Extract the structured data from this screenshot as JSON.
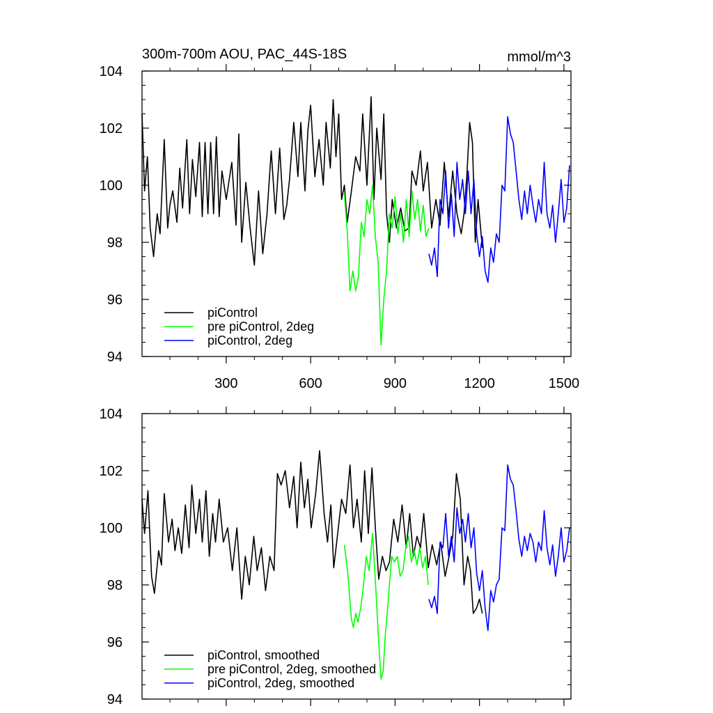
{
  "chart_data": [
    {
      "type": "line",
      "title": "300m-700m AOU, PAC_44S-18S",
      "units": "mmol/m^3",
      "xlabel": "",
      "ylabel": "",
      "xlim": [
        1,
        1525
      ],
      "ylim": [
        94,
        104
      ],
      "x_ticks": [
        300,
        600,
        900,
        1200,
        1500
      ],
      "x_tick_labels": [
        "300",
        "600",
        "900",
        "1200",
        "1500"
      ],
      "y_ticks": [
        94,
        96,
        98,
        100,
        102,
        104
      ],
      "y_tick_labels": [
        "94",
        "96",
        "98",
        "100",
        "102",
        "104"
      ],
      "legend_position": "bottom-left",
      "series": [
        {
          "name": "piControl",
          "color": "#000000",
          "x": [
            1,
            10,
            20,
            30,
            42,
            55,
            65,
            80,
            92,
            100,
            110,
            125,
            135,
            145,
            160,
            170,
            180,
            192,
            205,
            215,
            225,
            235,
            245,
            255,
            265,
            275,
            285,
            300,
            320,
            335,
            345,
            355,
            370,
            385,
            400,
            415,
            430,
            445,
            460,
            475,
            490,
            505,
            515,
            525,
            540,
            555,
            565,
            580,
            590,
            600,
            615,
            630,
            645,
            655,
            670,
            680,
            690,
            700,
            710,
            720,
            730,
            745,
            760,
            775,
            785,
            800,
            815,
            825,
            835,
            850,
            860,
            870,
            880,
            890,
            905,
            920,
            935,
            950,
            960,
            975,
            990,
            1000,
            1015,
            1030,
            1045,
            1060,
            1075,
            1090,
            1105,
            1120,
            1135,
            1145,
            1155,
            1165,
            1175,
            1185,
            1195,
            1210
          ],
          "values": [
            102.5,
            99.8,
            101.0,
            98.5,
            97.5,
            99.0,
            98.3,
            101.6,
            98.5,
            99.3,
            99.8,
            98.7,
            100.6,
            99.2,
            101.6,
            99.0,
            100.9,
            99.6,
            101.5,
            98.9,
            101.5,
            99.0,
            101.5,
            99.0,
            101.7,
            98.9,
            100.5,
            99.5,
            100.8,
            98.6,
            101.8,
            98.0,
            100.1,
            98.5,
            97.2,
            99.8,
            97.6,
            99.0,
            101.2,
            99.0,
            101.3,
            98.8,
            99.3,
            100.2,
            102.2,
            100.3,
            102.2,
            99.8,
            101.9,
            102.8,
            100.3,
            101.6,
            100.0,
            102.2,
            100.6,
            103.0,
            101.0,
            102.5,
            99.5,
            100.0,
            98.7,
            99.8,
            101.0,
            100.5,
            102.5,
            100.0,
            103.1,
            99.5,
            102.0,
            100.2,
            102.5,
            99.0,
            98.0,
            99.5,
            98.5,
            99.2,
            98.4,
            98.5,
            100.5,
            100.0,
            101.2,
            99.8,
            100.8,
            98.5,
            99.5,
            98.6,
            100.8,
            98.9,
            100.5,
            99.0,
            98.3,
            99.0,
            100.3,
            102.2,
            101.5,
            98.0,
            99.5,
            97.8
          ]
        },
        {
          "name": "pre piControl, 2deg",
          "color": "#00ff00",
          "x": [
            720,
            730,
            740,
            750,
            760,
            770,
            780,
            790,
            800,
            810,
            820,
            830,
            840,
            850,
            860,
            870,
            880,
            890,
            900,
            910,
            920,
            930,
            940,
            950,
            960,
            970,
            980,
            990,
            1000,
            1010,
            1020
          ],
          "values": [
            99.7,
            98.4,
            96.3,
            97.0,
            96.3,
            96.8,
            98.7,
            98.2,
            99.5,
            99.0,
            100.0,
            98.2,
            97.3,
            94.4,
            96.0,
            97.0,
            99.0,
            98.5,
            99.6,
            98.3,
            99.0,
            98.0,
            99.5,
            98.2,
            99.8,
            98.8,
            99.5,
            98.4,
            99.3,
            98.2,
            98.5
          ]
        },
        {
          "name": "piControl, 2deg",
          "color": "#0000ff",
          "x": [
            1020,
            1030,
            1040,
            1050,
            1060,
            1070,
            1080,
            1090,
            1100,
            1110,
            1120,
            1130,
            1140,
            1150,
            1160,
            1170,
            1180,
            1190,
            1200,
            1210,
            1220,
            1230,
            1240,
            1250,
            1260,
            1270,
            1280,
            1290,
            1300,
            1310,
            1320,
            1330,
            1340,
            1350,
            1360,
            1370,
            1380,
            1390,
            1400,
            1410,
            1420,
            1430,
            1440,
            1450,
            1460,
            1470,
            1480,
            1490,
            1500,
            1510,
            1520
          ],
          "values": [
            97.6,
            97.2,
            97.8,
            96.8,
            99.5,
            99.0,
            100.5,
            98.5,
            99.7,
            98.2,
            100.8,
            99.5,
            100.2,
            99.0,
            100.5,
            99.0,
            100.2,
            98.3,
            97.5,
            98.2,
            97.0,
            96.6,
            97.8,
            97.3,
            98.3,
            98.0,
            100.0,
            99.8,
            102.4,
            101.8,
            101.5,
            100.5,
            99.5,
            98.8,
            99.8,
            99.0,
            100.0,
            99.3,
            98.7,
            99.5,
            99.0,
            100.8,
            99.0,
            98.5,
            99.3,
            98.0,
            99.0,
            100.2,
            98.7,
            99.2,
            100.7
          ]
        }
      ]
    },
    {
      "type": "line",
      "title": "",
      "units": "",
      "xlabel": "",
      "ylabel": "",
      "xlim": [
        1,
        1525
      ],
      "ylim": [
        94,
        104
      ],
      "x_ticks": [
        300,
        600,
        900,
        1200,
        1500
      ],
      "x_tick_labels": [],
      "y_ticks": [
        94,
        96,
        98,
        100,
        102,
        104
      ],
      "y_tick_labels": [
        "94",
        "96",
        "98",
        "100",
        "102",
        "104"
      ],
      "legend_position": "bottom-left",
      "series": [
        {
          "name": "piControl, smoothed",
          "color": "#000000",
          "x": [
            1,
            10,
            22,
            35,
            45,
            60,
            70,
            80,
            95,
            108,
            118,
            130,
            142,
            155,
            168,
            178,
            192,
            205,
            215,
            228,
            240,
            252,
            262,
            275,
            290,
            305,
            322,
            338,
            355,
            368,
            382,
            398,
            410,
            425,
            440,
            455,
            470,
            482,
            495,
            510,
            525,
            540,
            552,
            565,
            578,
            590,
            602,
            618,
            632,
            648,
            660,
            672,
            682,
            695,
            710,
            725,
            740,
            752,
            765,
            780,
            792,
            805,
            818,
            830,
            842,
            855,
            868,
            880,
            895,
            910,
            925,
            940,
            952,
            965,
            978,
            990,
            1002,
            1018,
            1032,
            1048,
            1062,
            1078,
            1092,
            1105,
            1118,
            1132,
            1145,
            1158,
            1168,
            1178,
            1190,
            1200,
            1210
          ],
          "values": [
            101.0,
            99.8,
            101.3,
            98.3,
            97.7,
            99.2,
            98.7,
            101.2,
            99.5,
            100.3,
            99.2,
            100.0,
            99.1,
            100.8,
            99.3,
            101.5,
            99.8,
            101.0,
            99.5,
            101.3,
            99.0,
            100.5,
            99.5,
            101.0,
            99.5,
            100.0,
            98.5,
            100.0,
            97.5,
            99.0,
            98.0,
            99.7,
            98.5,
            99.3,
            97.8,
            99.0,
            98.5,
            101.9,
            101.5,
            102.0,
            100.7,
            101.8,
            100.0,
            102.3,
            100.7,
            101.7,
            100.0,
            101.2,
            102.7,
            100.5,
            99.5,
            100.8,
            98.6,
            99.7,
            101.0,
            100.5,
            102.2,
            100.0,
            101.0,
            99.5,
            102.0,
            99.8,
            102.1,
            100.0,
            98.2,
            99.0,
            98.5,
            98.8,
            100.3,
            99.5,
            100.8,
            99.3,
            100.5,
            99.0,
            99.7,
            99.3,
            100.5,
            98.6,
            99.4,
            98.7,
            99.5,
            98.3,
            99.0,
            99.7,
            101.9,
            101.0,
            98.0,
            99.0,
            98.5,
            97.0,
            97.2,
            97.5,
            97.0
          ]
        },
        {
          "name": "pre piControl, 2deg, smoothed",
          "color": "#00ff00",
          "x": [
            720,
            732,
            745,
            752,
            760,
            768,
            778,
            788,
            798,
            808,
            820,
            832,
            842,
            850,
            858,
            865,
            872,
            880,
            888,
            898,
            908,
            918,
            928,
            938,
            948,
            958,
            968,
            978,
            988,
            998,
            1008,
            1018
          ],
          "values": [
            99.4,
            98.4,
            96.8,
            96.5,
            97.0,
            96.7,
            97.2,
            98.0,
            99.0,
            98.5,
            99.8,
            97.8,
            96.0,
            94.7,
            95.0,
            96.2,
            97.0,
            98.0,
            99.0,
            98.8,
            99.0,
            98.3,
            98.5,
            99.3,
            99.7,
            98.8,
            99.2,
            98.7,
            99.3,
            98.6,
            99.0,
            98.0
          ]
        },
        {
          "name": "piControl, 2deg, smoothed",
          "color": "#0000ff",
          "x": [
            1020,
            1030,
            1040,
            1050,
            1060,
            1070,
            1080,
            1090,
            1100,
            1110,
            1120,
            1130,
            1140,
            1150,
            1160,
            1170,
            1180,
            1190,
            1200,
            1210,
            1220,
            1230,
            1240,
            1250,
            1260,
            1270,
            1280,
            1290,
            1300,
            1310,
            1320,
            1330,
            1340,
            1350,
            1360,
            1370,
            1380,
            1390,
            1400,
            1410,
            1420,
            1430,
            1440,
            1450,
            1460,
            1470,
            1480,
            1490,
            1500,
            1510,
            1520
          ],
          "values": [
            97.5,
            97.2,
            97.6,
            97.0,
            99.5,
            99.3,
            100.5,
            99.0,
            99.7,
            98.8,
            100.7,
            99.8,
            100.3,
            99.5,
            100.5,
            99.3,
            100.0,
            98.4,
            97.8,
            98.5,
            97.2,
            96.4,
            97.8,
            97.4,
            98.0,
            98.2,
            100.0,
            99.9,
            102.2,
            101.7,
            101.5,
            100.6,
            99.6,
            99.0,
            99.7,
            99.2,
            99.8,
            99.5,
            98.8,
            99.5,
            99.2,
            100.6,
            99.3,
            98.7,
            99.4,
            98.3,
            99.0,
            100.0,
            98.8,
            99.2,
            100.0
          ]
        }
      ]
    }
  ]
}
